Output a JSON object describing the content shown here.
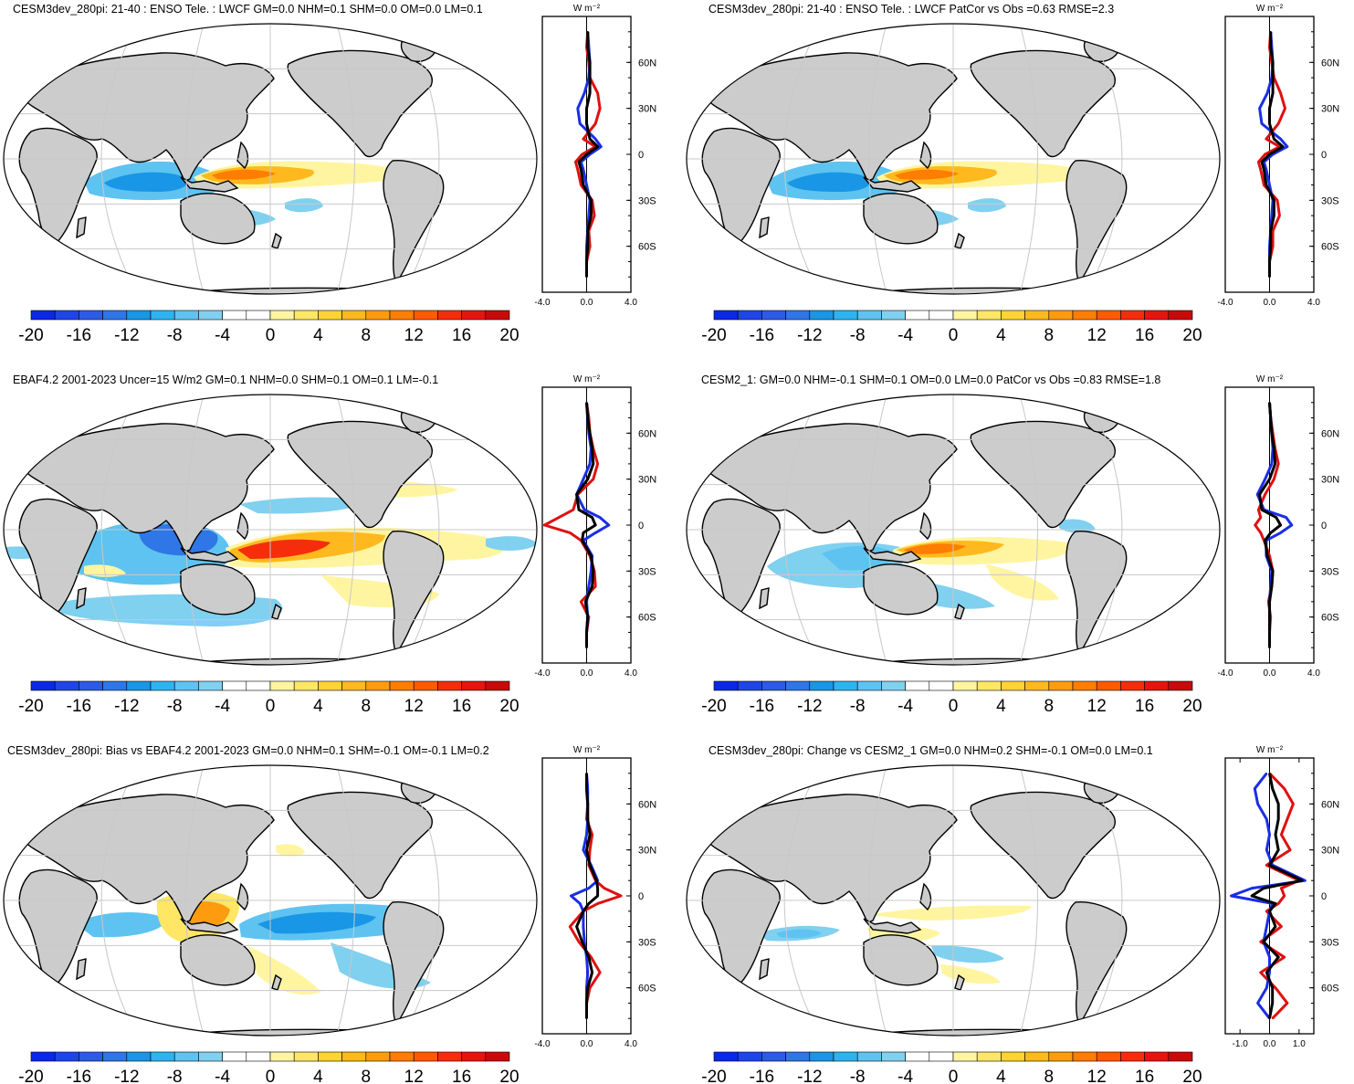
{
  "figure": {
    "units_label": "W m⁻²",
    "latitude_ticks": [
      "60N",
      "30N",
      "0",
      "30S",
      "60S"
    ],
    "colorbar": {
      "colors": [
        "#0a28e6",
        "#1e46e6",
        "#2d5ae6",
        "#2f76e6",
        "#1996e6",
        "#2db4f0",
        "#5ec3f0",
        "#80d0f0",
        "#ffffff",
        "#ffffff",
        "#fff5a0",
        "#ffe664",
        "#ffd235",
        "#ffb91e",
        "#ff9b0f",
        "#ff7d00",
        "#ff5a00",
        "#f52d0a",
        "#e6140f",
        "#c80a0a"
      ],
      "labels": [
        "-20",
        "-16",
        "-12",
        "-8",
        "-4",
        "0",
        "4",
        "8",
        "12",
        "16",
        "20"
      ]
    },
    "land_color": "#cccccc",
    "line_colors": {
      "model": "#e01010",
      "obs": "#1a2ee6",
      "land_ocean_mean": "#000000"
    }
  },
  "chart_data": [
    {
      "type": "map",
      "title": "CESM3dev_280pi: 21-40 : ENSO Tele. : LWCF GM=0.0 NHM=0.1 SHM=0.0 OM=0.0 LM=0.1",
      "field": "LWCF ENSO teleconnection",
      "stats": {
        "GM": 0.0,
        "NHM": 0.1,
        "SHM": 0.0,
        "OM": 0.0,
        "LM": 0.1
      },
      "zonal_profile": {
        "xlim": [
          -4.0,
          4.0
        ],
        "xticks": [
          "-4.0",
          "0.0",
          "4.0"
        ],
        "lat": [
          80,
          70,
          60,
          50,
          40,
          30,
          20,
          10,
          5,
          0,
          -5,
          -10,
          -20,
          -30,
          -40,
          -50,
          -60,
          -70,
          -80
        ],
        "series": [
          {
            "name": "red",
            "values": [
              0.1,
              0.0,
              0.2,
              0.3,
              1.0,
              1.2,
              0.8,
              -0.3,
              0.8,
              -0.4,
              -1.0,
              -0.8,
              -0.5,
              0.5,
              0.7,
              0.2,
              0.3,
              0.0,
              0.0
            ]
          },
          {
            "name": "blue",
            "values": [
              0.1,
              0.2,
              0.3,
              0.2,
              -0.2,
              -0.8,
              -0.6,
              0.8,
              1.3,
              0.3,
              -0.5,
              -0.3,
              0.0,
              0.3,
              0.2,
              0.1,
              0.0,
              0.0,
              0.0
            ]
          },
          {
            "name": "black",
            "values": [
              0.1,
              0.1,
              0.3,
              0.3,
              0.3,
              0.0,
              0.0,
              0.3,
              1.0,
              0.0,
              -0.7,
              -0.5,
              -0.3,
              0.4,
              0.4,
              0.1,
              0.1,
              0.0,
              0.0
            ]
          }
        ]
      }
    },
    {
      "type": "map",
      "title": "CESM3dev_280pi: 21-40 : ENSO Tele. : LWCF PatCor vs Obs =0.63 RMSE=2.3",
      "field": "LWCF ENSO teleconnection",
      "stats": {
        "PatCor": 0.63,
        "RMSE": 2.3
      },
      "zonal_profile": {
        "xlim": [
          -4.0,
          4.0
        ],
        "xticks": [
          "-4.0",
          "0.0",
          "4.0"
        ],
        "lat": [
          80,
          70,
          60,
          50,
          40,
          30,
          20,
          10,
          5,
          0,
          -5,
          -10,
          -20,
          -30,
          -40,
          -50,
          -60,
          -70,
          -80
        ],
        "series": [
          {
            "name": "red",
            "values": [
              0.1,
              0.0,
              0.2,
              0.4,
              1.0,
              1.4,
              0.8,
              -0.3,
              0.9,
              -0.4,
              -1.0,
              -0.8,
              -0.5,
              0.7,
              0.9,
              0.3,
              0.3,
              0.0,
              0.0
            ]
          },
          {
            "name": "blue",
            "values": [
              0.1,
              0.2,
              0.3,
              0.2,
              -0.2,
              -0.9,
              -0.7,
              1.0,
              1.6,
              0.3,
              -0.5,
              -0.3,
              0.0,
              0.3,
              0.2,
              0.1,
              0.0,
              0.0,
              0.0
            ]
          },
          {
            "name": "black",
            "values": [
              0.1,
              0.1,
              0.3,
              0.3,
              0.3,
              0.0,
              0.0,
              0.4,
              1.2,
              0.0,
              -0.7,
              -0.5,
              -0.3,
              0.4,
              0.4,
              0.1,
              0.1,
              0.0,
              0.0
            ]
          }
        ]
      }
    },
    {
      "type": "map",
      "title": "EBAF4.2 2001-2023 Uncer=15 W/m2 GM=0.1 NHM=0.0 SHM=0.1 OM=0.1 LM=-0.1",
      "field": "LWCF observed",
      "stats": {
        "GM": 0.1,
        "NHM": 0.0,
        "SHM": 0.1,
        "OM": 0.1,
        "LM": -0.1
      },
      "zonal_profile": {
        "xlim": [
          -4.0,
          4.0
        ],
        "xticks": [
          "-4.0",
          "0.0",
          "4.0"
        ],
        "lat": [
          80,
          70,
          60,
          50,
          40,
          30,
          20,
          10,
          5,
          0,
          -5,
          -10,
          -20,
          -30,
          -40,
          -50,
          -60,
          -70,
          -80
        ],
        "series": [
          {
            "name": "red",
            "values": [
              0.0,
              0.2,
              0.3,
              0.6,
              1.0,
              0.6,
              -0.8,
              -1.2,
              -2.5,
              -3.8,
              -1.5,
              -0.5,
              0.3,
              0.7,
              0.8,
              -0.5,
              0.2,
              0.0,
              0.0
            ]
          },
          {
            "name": "blue",
            "values": [
              0.0,
              0.1,
              0.2,
              0.4,
              0.3,
              -0.3,
              -0.9,
              -0.2,
              1.2,
              2.0,
              0.8,
              -0.3,
              0.5,
              0.4,
              0.2,
              0.0,
              0.1,
              0.0,
              0.0
            ]
          },
          {
            "name": "black",
            "values": [
              0.0,
              0.1,
              0.3,
              0.5,
              0.6,
              0.1,
              -0.9,
              -0.7,
              0.5,
              0.8,
              -0.3,
              -0.4,
              0.4,
              0.6,
              0.5,
              -0.1,
              0.1,
              0.0,
              0.0
            ]
          }
        ]
      }
    },
    {
      "type": "map",
      "title": "CESM2_1: GM=0.0 NHM=-0.1 SHM=0.1 OM=0.0 LM=0.0 PatCor vs Obs =0.83 RMSE=1.8",
      "field": "LWCF ENSO teleconnection",
      "stats": {
        "GM": 0.0,
        "NHM": -0.1,
        "SHM": 0.1,
        "OM": 0.0,
        "LM": 0.0,
        "PatCor": 0.83,
        "RMSE": 1.8
      },
      "zonal_profile": {
        "xlim": [
          -4.0,
          4.0
        ],
        "xticks": [
          "-4.0",
          "0.0",
          "4.0"
        ],
        "lat": [
          80,
          70,
          60,
          50,
          40,
          30,
          20,
          10,
          5,
          0,
          -5,
          -10,
          -20,
          -30,
          -40,
          -50,
          -60,
          -70,
          -80
        ],
        "series": [
          {
            "name": "red",
            "values": [
              0.0,
              0.1,
              0.3,
              0.5,
              0.8,
              0.4,
              -0.4,
              -1.0,
              -0.8,
              -1.3,
              -0.8,
              -0.5,
              0.0,
              0.3,
              0.2,
              -0.1,
              0.1,
              0.0,
              0.0
            ]
          },
          {
            "name": "blue",
            "values": [
              0.0,
              0.1,
              0.2,
              0.3,
              0.2,
              -0.4,
              -1.1,
              -0.5,
              1.5,
              2.0,
              1.0,
              -0.3,
              -0.3,
              0.2,
              0.1,
              0.0,
              0.0,
              0.0,
              0.0
            ]
          },
          {
            "name": "black",
            "values": [
              0.0,
              0.1,
              0.2,
              0.4,
              0.5,
              0.0,
              -0.9,
              -0.7,
              0.6,
              1.0,
              0.1,
              -0.4,
              -0.2,
              0.3,
              0.2,
              0.0,
              0.0,
              0.0,
              0.0
            ]
          }
        ]
      }
    },
    {
      "type": "map",
      "title": "CESM3dev_280pi: Bias vs EBAF4.2 2001-2023 GM=0.0 NHM=0.1 SHM=-0.1 OM=-0.1 LM=0.2",
      "field": "LWCF bias",
      "stats": {
        "GM": 0.0,
        "NHM": 0.1,
        "SHM": -0.1,
        "OM": -0.1,
        "LM": 0.2
      },
      "zonal_profile": {
        "xlim": [
          -4.0,
          4.0
        ],
        "xticks": [
          "-4.0",
          "0.0",
          "4.0"
        ],
        "lat": [
          80,
          70,
          60,
          50,
          40,
          30,
          20,
          10,
          5,
          0,
          -5,
          -10,
          -20,
          -30,
          -40,
          -50,
          -60,
          -70,
          -80
        ],
        "series": [
          {
            "name": "red",
            "values": [
              0.0,
              0.0,
              0.1,
              0.0,
              0.5,
              0.3,
              0.2,
              0.8,
              1.6,
              3.1,
              1.0,
              -0.3,
              -1.5,
              -0.7,
              0.4,
              1.2,
              0.3,
              0.0,
              0.0
            ]
          },
          {
            "name": "blue",
            "values": [
              0.0,
              0.1,
              0.1,
              0.1,
              0.0,
              -0.3,
              0.4,
              1.0,
              0.2,
              -1.4,
              -0.6,
              -0.3,
              -0.3,
              -0.2,
              0.0,
              0.1,
              0.0,
              0.0,
              0.0
            ]
          },
          {
            "name": "black",
            "values": [
              0.0,
              0.0,
              0.1,
              0.1,
              0.3,
              0.0,
              0.3,
              0.9,
              1.0,
              1.0,
              0.2,
              -0.3,
              -0.9,
              -0.4,
              0.2,
              0.5,
              0.1,
              0.0,
              0.0
            ]
          }
        ]
      }
    },
    {
      "type": "map",
      "title": "CESM3dev_280pi: Change vs CESM2_1 GM=0.0 NHM=0.2 SHM=-0.1 OM=0.0 LM=0.1",
      "field": "LWCF change",
      "stats": {
        "GM": 0.0,
        "NHM": 0.2,
        "SHM": -0.1,
        "OM": 0.0,
        "LM": 0.1
      },
      "zonal_profile": {
        "xlim": [
          -1.5,
          1.5
        ],
        "xticks": [
          "-1.0",
          "0.0",
          "1.0"
        ],
        "lat": [
          80,
          70,
          60,
          50,
          40,
          30,
          20,
          10,
          5,
          0,
          -5,
          -10,
          -20,
          -30,
          -40,
          -50,
          -60,
          -70,
          -80
        ],
        "series": [
          {
            "name": "red",
            "values": [
              0.0,
              0.5,
              0.8,
              0.6,
              0.4,
              0.7,
              -0.1,
              1.0,
              0.4,
              0.5,
              0.3,
              -0.1,
              0.4,
              -0.3,
              0.5,
              -0.3,
              0.2,
              0.6,
              0.1
            ]
          },
          {
            "name": "blue",
            "values": [
              -0.1,
              -0.5,
              -0.4,
              -0.1,
              0.0,
              -0.1,
              0.1,
              1.2,
              -0.6,
              -1.3,
              0.1,
              0.0,
              -0.1,
              -0.2,
              0.0,
              0.0,
              -0.1,
              -0.4,
              0.0
            ]
          },
          {
            "name": "black",
            "values": [
              0.0,
              0.1,
              0.3,
              0.3,
              0.2,
              0.3,
              0.0,
              1.1,
              -0.2,
              -0.6,
              0.2,
              0.0,
              0.2,
              -0.2,
              0.3,
              -0.1,
              0.1,
              0.1,
              0.0
            ]
          }
        ]
      }
    }
  ]
}
